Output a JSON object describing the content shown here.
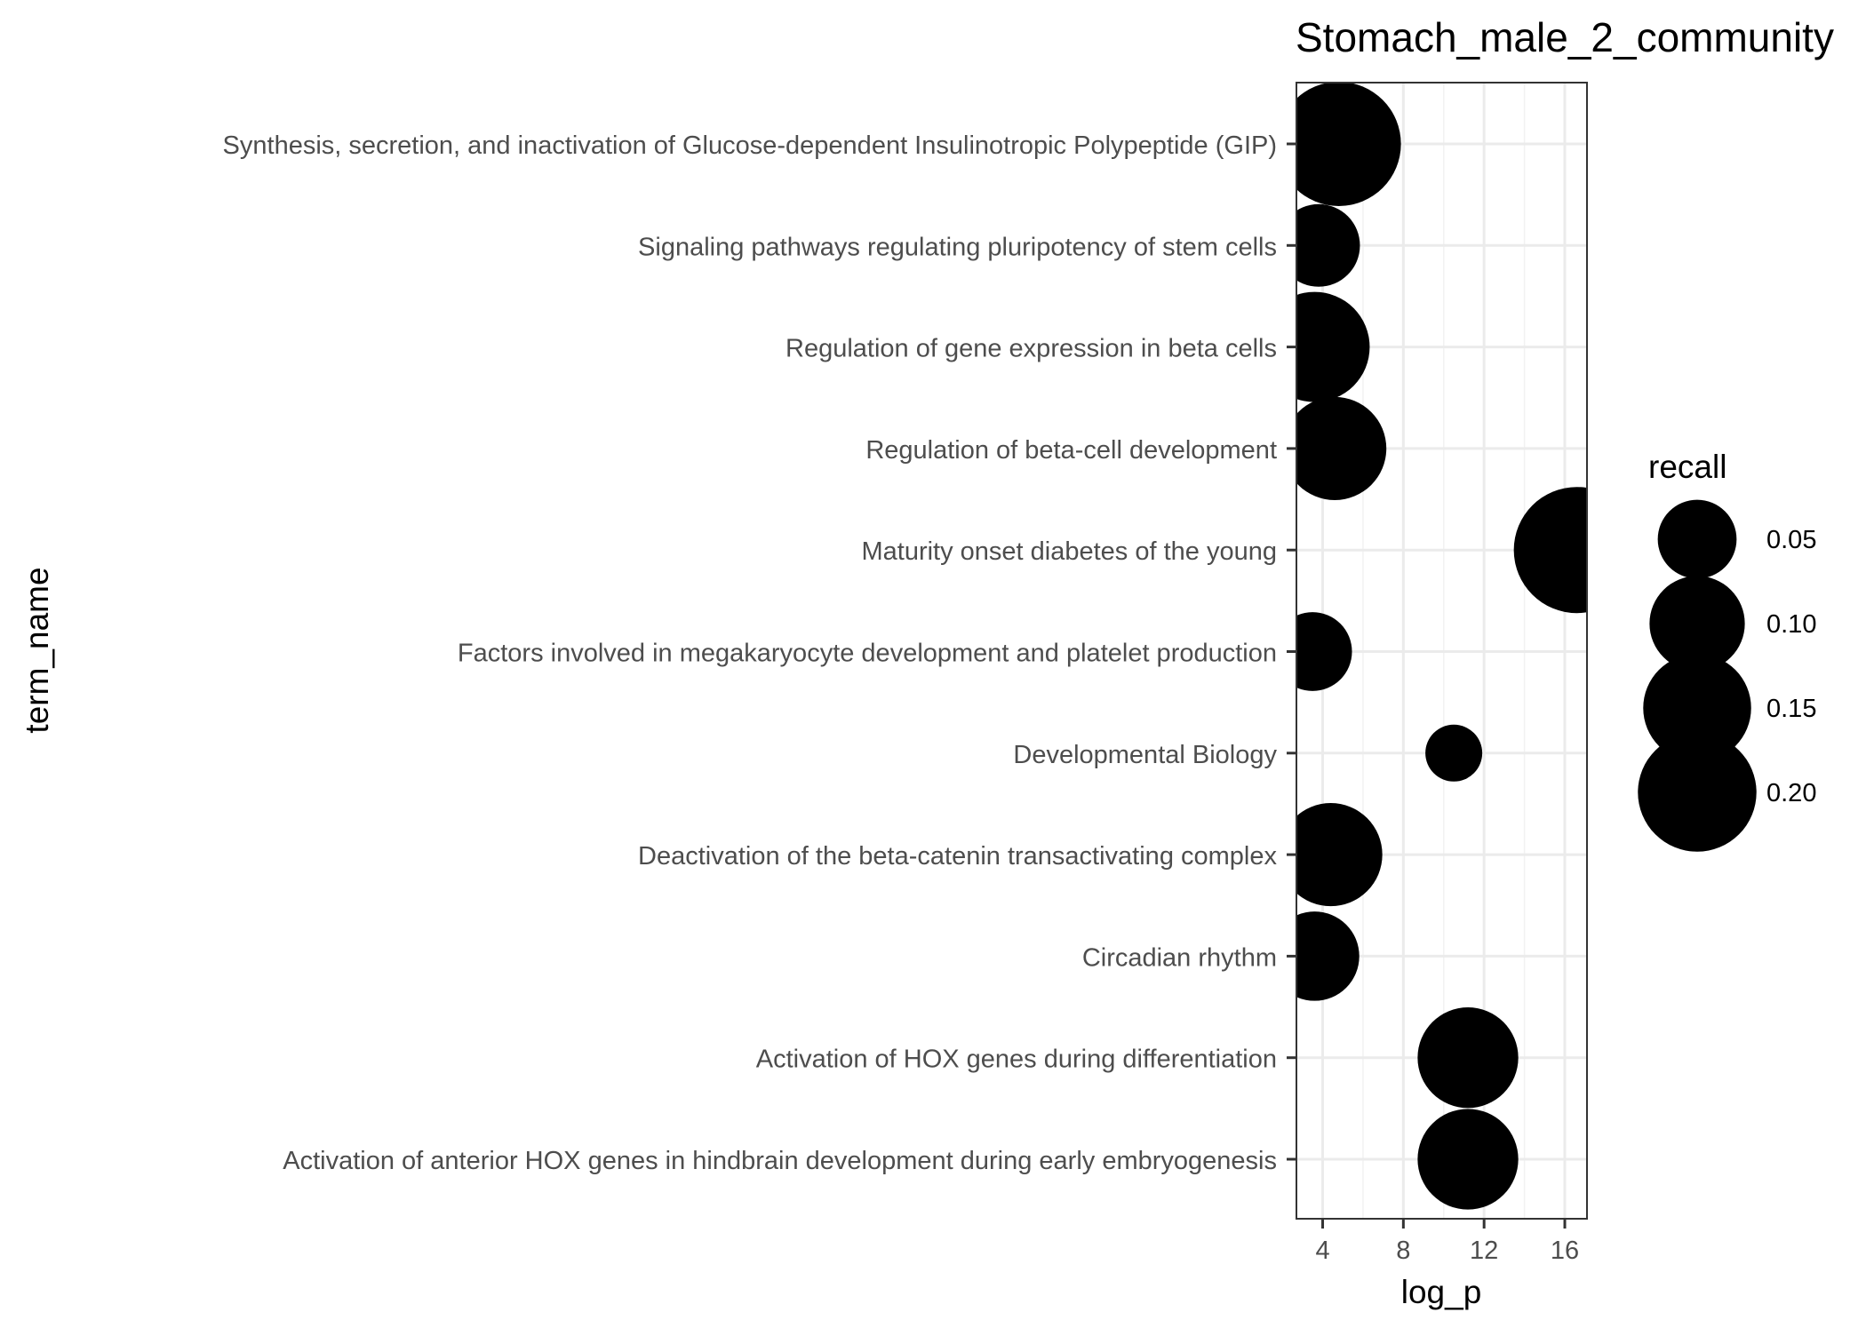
{
  "chart_data": {
    "type": "scatter",
    "title": "Stomach_male_2_community",
    "xlabel": "log_p",
    "ylabel": "term_name",
    "xlim": [
      2.7,
      17.1
    ],
    "x_ticks": [
      4,
      8,
      12,
      16
    ],
    "x_tick_labels": [
      "4",
      "8",
      "12",
      "16"
    ],
    "categories": [
      "Synthesis, secretion, and inactivation of Glucose-dependent Insulinotropic Polypeptide (GIP)",
      "Signaling pathways regulating pluripotency of stem cells",
      "Regulation of gene expression in beta cells",
      "Regulation of beta-cell development",
      "Maturity onset diabetes of the young",
      "Factors involved in megakaryocyte development and platelet production",
      "Developmental Biology",
      "Deactivation of the beta-catenin transactivating complex",
      "Circadian rhythm",
      "Activation of HOX genes during differentiation",
      "Activation of anterior HOX genes in hindbrain development during early embryogenesis"
    ],
    "points": [
      {
        "term": "Synthesis, secretion, and inactivation of Glucose-dependent Insulinotropic Polypeptide (GIP)",
        "log_p": 4.8,
        "recall": 0.23
      },
      {
        "term": "Signaling pathways regulating pluripotency of stem cells",
        "log_p": 3.8,
        "recall": 0.06
      },
      {
        "term": "Regulation of gene expression in beta cells",
        "log_p": 3.6,
        "recall": 0.16
      },
      {
        "term": "Regulation of beta-cell development",
        "log_p": 4.6,
        "recall": 0.13
      },
      {
        "term": "Maturity onset diabetes of the young",
        "log_p": 16.6,
        "recall": 0.24
      },
      {
        "term": "Factors involved in megakaryocyte development and platelet production",
        "log_p": 3.5,
        "recall": 0.05
      },
      {
        "term": "Developmental Biology",
        "log_p": 10.5,
        "recall": 0.01
      },
      {
        "term": "Deactivation of the beta-catenin transactivating complex",
        "log_p": 4.4,
        "recall": 0.13
      },
      {
        "term": "Circadian rhythm",
        "log_p": 3.6,
        "recall": 0.08
      },
      {
        "term": "Activation of HOX genes during differentiation",
        "log_p": 11.2,
        "recall": 0.12
      },
      {
        "term": "Activation of anterior HOX genes in hindbrain development during early embryogenesis",
        "log_p": 11.2,
        "recall": 0.12
      }
    ],
    "legend": {
      "title": "recall",
      "placement": "right",
      "labels": [
        "0.05",
        "0.10",
        "0.15",
        "0.20"
      ],
      "values": [
        0.05,
        0.1,
        0.15,
        0.2
      ]
    },
    "grid": true,
    "marker_color": "#000000"
  }
}
